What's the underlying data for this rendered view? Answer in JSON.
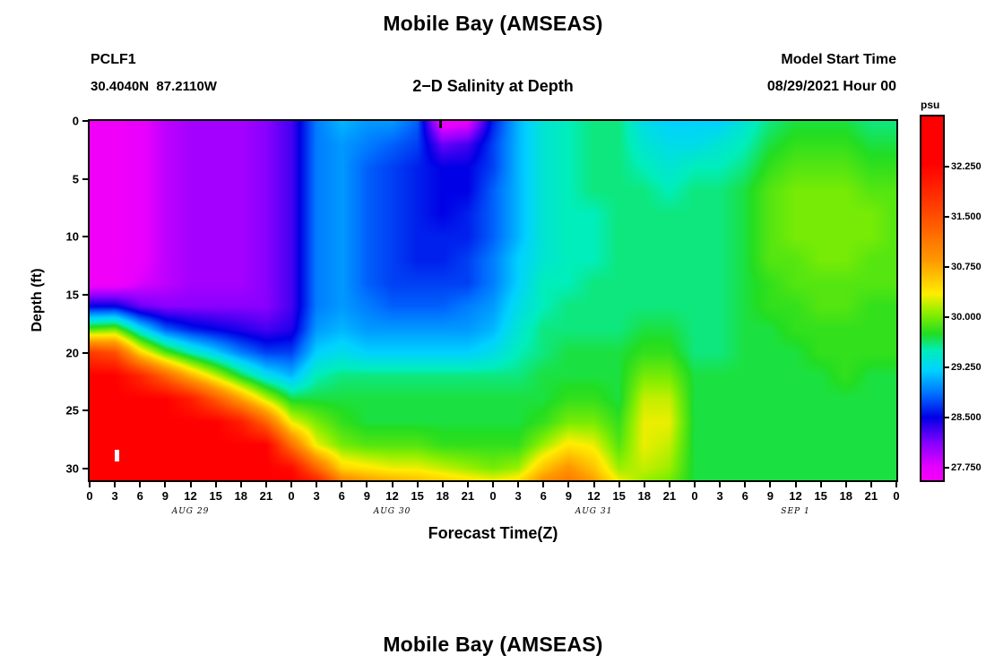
{
  "footer": {
    "next_title": "Mobile Bay (AMSEAS)"
  },
  "chart_data": {
    "type": "heatmap",
    "title": "Mobile Bay (AMSEAS)",
    "subtitle": "2−D Salinity at Depth",
    "station": "PCLF1",
    "location": "30.4040N  87.2110W",
    "model_start_label": "Model Start Time",
    "model_start_value": "08/29/2021 Hour 00",
    "xlabel": "Forecast Time(Z)",
    "ylabel": "Depth (ft)",
    "units": "psu",
    "hour_range": [
      0,
      96
    ],
    "depth_range": [
      0,
      31
    ],
    "x_hours": [
      0,
      3,
      6,
      9,
      12,
      15,
      18,
      21,
      24,
      27,
      30,
      33,
      36,
      39,
      42,
      45,
      48,
      51,
      54,
      57,
      60,
      63,
      66,
      69,
      72,
      75,
      78,
      81,
      84,
      87,
      90,
      93,
      96
    ],
    "x_tick_labels": [
      "0",
      "3",
      "6",
      "9",
      "12",
      "15",
      "18",
      "21",
      "0",
      "3",
      "6",
      "9",
      "12",
      "15",
      "18",
      "21",
      "0",
      "3",
      "6",
      "9",
      "12",
      "15",
      "18",
      "21",
      "0",
      "3",
      "6",
      "9",
      "12",
      "15",
      "18",
      "21",
      "0"
    ],
    "day_labels": [
      {
        "text": "AUG 29",
        "center_hour": 12
      },
      {
        "text": "AUG 30",
        "center_hour": 36
      },
      {
        "text": "AUG 31",
        "center_hour": 60
      },
      {
        "text": "SEP 1",
        "center_hour": 84
      }
    ],
    "y_ticks": [
      0,
      5,
      10,
      15,
      20,
      25,
      30
    ],
    "depths_ft": [
      0,
      2,
      4,
      6,
      8,
      10,
      12,
      14,
      16,
      18,
      20,
      22,
      24,
      26,
      28,
      30,
      31
    ],
    "salinity_psu": [
      [
        27.6,
        27.6,
        27.6,
        27.6,
        27.6,
        27.6,
        27.6,
        27.6,
        28.5,
        29.9,
        31.7,
        32.3,
        32.3,
        32.3,
        32.3,
        32.3,
        32.3
      ],
      [
        27.6,
        27.6,
        27.6,
        27.6,
        27.6,
        27.6,
        27.6,
        27.6,
        28.5,
        30.0,
        31.5,
        32.3,
        32.3,
        32.3,
        32.3,
        32.3,
        32.3
      ],
      [
        27.7,
        27.7,
        27.7,
        27.7,
        27.7,
        27.7,
        27.7,
        27.8,
        28.2,
        29.3,
        30.5,
        31.9,
        32.3,
        32.3,
        32.3,
        32.3,
        32.3
      ],
      [
        27.9,
        27.9,
        27.9,
        27.9,
        27.9,
        27.9,
        27.9,
        27.9,
        28.1,
        28.8,
        29.9,
        31.3,
        32.3,
        32.3,
        32.3,
        32.3,
        32.3
      ],
      [
        28.0,
        28.0,
        28.0,
        28.0,
        28.0,
        28.0,
        28.0,
        28.0,
        28.1,
        28.6,
        29.5,
        30.7,
        32.0,
        32.3,
        32.3,
        32.3,
        32.3
      ],
      [
        28.0,
        28.0,
        28.0,
        28.0,
        28.0,
        28.0,
        28.0,
        28.0,
        28.1,
        28.5,
        29.2,
        30.2,
        31.4,
        32.3,
        32.3,
        32.3,
        32.3
      ],
      [
        28.0,
        28.0,
        28.0,
        28.0,
        28.0,
        28.0,
        28.0,
        28.0,
        28.1,
        28.4,
        28.9,
        29.7,
        30.8,
        32.0,
        32.3,
        32.3,
        32.3
      ],
      [
        28.1,
        28.1,
        28.1,
        28.1,
        28.1,
        28.1,
        28.1,
        28.1,
        28.1,
        28.3,
        28.7,
        29.3,
        30.2,
        31.3,
        32.3,
        32.3,
        32.3
      ],
      [
        28.3,
        28.3,
        28.3,
        28.3,
        28.3,
        28.3,
        28.3,
        28.3,
        28.3,
        28.4,
        28.7,
        29.1,
        29.7,
        30.3,
        31.2,
        32.2,
        32.3
      ],
      [
        28.9,
        28.9,
        28.9,
        28.9,
        28.9,
        28.9,
        28.9,
        28.9,
        28.9,
        29.0,
        29.2,
        29.5,
        29.7,
        30.0,
        30.3,
        31.3,
        31.9
      ],
      [
        29.1,
        29.0,
        29.0,
        29.0,
        29.0,
        29.0,
        29.0,
        29.0,
        29.0,
        29.1,
        29.3,
        29.6,
        29.7,
        29.8,
        30.0,
        30.5,
        31.0
      ],
      [
        29.0,
        28.9,
        28.8,
        28.8,
        28.8,
        28.8,
        28.8,
        28.8,
        28.9,
        29.0,
        29.2,
        29.6,
        29.7,
        29.7,
        29.9,
        30.4,
        30.8
      ],
      [
        29.0,
        28.8,
        28.7,
        28.7,
        28.7,
        28.7,
        28.7,
        28.7,
        28.8,
        29.0,
        29.2,
        29.6,
        29.7,
        29.7,
        29.9,
        30.3,
        30.7
      ],
      [
        28.8,
        28.7,
        28.6,
        28.6,
        28.6,
        28.6,
        28.6,
        28.7,
        28.8,
        29.0,
        29.2,
        29.6,
        29.7,
        29.7,
        29.9,
        30.3,
        30.6
      ],
      [
        27.6,
        28.2,
        28.5,
        28.5,
        28.5,
        28.6,
        28.6,
        28.7,
        28.8,
        29.0,
        29.2,
        29.6,
        29.7,
        29.7,
        29.8,
        30.2,
        30.5
      ],
      [
        27.7,
        28.3,
        28.5,
        28.5,
        28.6,
        28.6,
        28.7,
        28.7,
        28.9,
        29.0,
        29.2,
        29.6,
        29.7,
        29.7,
        29.8,
        30.1,
        30.4
      ],
      [
        28.6,
        28.7,
        28.7,
        28.8,
        28.8,
        28.8,
        28.9,
        28.9,
        29.0,
        29.1,
        29.3,
        29.6,
        29.7,
        29.7,
        29.8,
        30.0,
        30.3
      ],
      [
        29.1,
        29.1,
        29.1,
        29.1,
        29.1,
        29.1,
        29.2,
        29.2,
        29.3,
        29.4,
        29.5,
        29.6,
        29.7,
        29.7,
        29.8,
        30.1,
        30.4
      ],
      [
        29.4,
        29.4,
        29.4,
        29.4,
        29.4,
        29.4,
        29.4,
        29.5,
        29.5,
        29.6,
        29.6,
        29.7,
        29.7,
        29.8,
        30.1,
        30.6,
        30.9
      ],
      [
        29.5,
        29.5,
        29.5,
        29.5,
        29.5,
        29.5,
        29.5,
        29.5,
        29.6,
        29.6,
        29.7,
        29.7,
        29.8,
        30.0,
        30.4,
        30.9,
        31.1
      ],
      [
        29.6,
        29.6,
        29.6,
        29.6,
        29.5,
        29.5,
        29.5,
        29.6,
        29.6,
        29.6,
        29.7,
        29.7,
        29.8,
        30.0,
        30.3,
        30.6,
        30.8
      ],
      [
        29.6,
        29.6,
        29.6,
        29.6,
        29.6,
        29.6,
        29.6,
        29.6,
        29.6,
        29.6,
        29.7,
        29.7,
        29.7,
        29.8,
        29.9,
        30.1,
        30.3
      ],
      [
        29.3,
        29.4,
        29.5,
        29.6,
        29.6,
        29.6,
        29.6,
        29.6,
        29.6,
        29.7,
        29.8,
        30.0,
        30.2,
        30.3,
        30.3,
        30.2,
        30.1
      ],
      [
        29.2,
        29.3,
        29.4,
        29.5,
        29.6,
        29.6,
        29.6,
        29.6,
        29.6,
        29.7,
        29.8,
        30.0,
        30.2,
        30.3,
        30.2,
        30.1,
        30.0
      ],
      [
        29.2,
        29.3,
        29.5,
        29.6,
        29.6,
        29.6,
        29.6,
        29.6,
        29.6,
        29.6,
        29.6,
        29.7,
        29.7,
        29.7,
        29.7,
        29.7,
        29.7
      ],
      [
        29.2,
        29.4,
        29.5,
        29.6,
        29.6,
        29.6,
        29.6,
        29.6,
        29.6,
        29.6,
        29.6,
        29.7,
        29.7,
        29.7,
        29.7,
        29.7,
        29.7
      ],
      [
        29.4,
        29.5,
        29.6,
        29.7,
        29.7,
        29.7,
        29.7,
        29.7,
        29.7,
        29.7,
        29.7,
        29.7,
        29.7,
        29.7,
        29.7,
        29.7,
        29.7
      ],
      [
        29.6,
        29.7,
        29.8,
        29.9,
        29.9,
        29.9,
        29.9,
        29.8,
        29.8,
        29.7,
        29.7,
        29.7,
        29.7,
        29.7,
        29.7,
        29.7,
        29.7
      ],
      [
        29.7,
        29.8,
        29.9,
        30.0,
        30.0,
        30.0,
        29.9,
        29.9,
        29.8,
        29.8,
        29.7,
        29.7,
        29.7,
        29.7,
        29.7,
        29.7,
        29.7
      ],
      [
        29.7,
        29.8,
        29.9,
        30.0,
        30.0,
        30.0,
        30.0,
        29.9,
        29.9,
        29.8,
        29.8,
        29.7,
        29.7,
        29.7,
        29.7,
        29.7,
        29.7
      ],
      [
        29.7,
        29.8,
        29.9,
        30.0,
        30.0,
        30.0,
        30.0,
        29.9,
        29.9,
        29.8,
        29.8,
        29.8,
        29.7,
        29.7,
        29.7,
        29.7,
        29.7
      ],
      [
        29.6,
        29.7,
        29.8,
        29.9,
        30.0,
        30.0,
        29.9,
        29.9,
        29.8,
        29.8,
        29.8,
        29.7,
        29.7,
        29.7,
        29.7,
        29.7,
        29.7
      ],
      [
        29.6,
        29.7,
        29.8,
        29.9,
        29.9,
        29.9,
        29.9,
        29.9,
        29.8,
        29.8,
        29.8,
        29.7,
        29.7,
        29.7,
        29.7,
        29.7,
        29.7
      ]
    ],
    "colorbar": {
      "units": "psu",
      "tick_labels": [
        "32.250",
        "31.500",
        "30.750",
        "30.000",
        "29.250",
        "28.500",
        "27.750"
      ],
      "min": 27.5625,
      "max": 33.0
    },
    "colormap": [
      {
        "v": 27.4,
        "c": "#ff00f0"
      },
      {
        "v": 27.75,
        "c": "#e600ff"
      },
      {
        "v": 28.1,
        "c": "#8a00ff"
      },
      {
        "v": 28.5,
        "c": "#0000e6"
      },
      {
        "v": 28.85,
        "c": "#0070ff"
      },
      {
        "v": 29.2,
        "c": "#00d2ff"
      },
      {
        "v": 29.5,
        "c": "#00eebb"
      },
      {
        "v": 29.75,
        "c": "#22dd22"
      },
      {
        "v": 30.05,
        "c": "#88ee00"
      },
      {
        "v": 30.35,
        "c": "#ffee00"
      },
      {
        "v": 30.85,
        "c": "#ff9900"
      },
      {
        "v": 31.6,
        "c": "#ff4400"
      },
      {
        "v": 32.3,
        "c": "#ff0000"
      }
    ],
    "markers": [
      {
        "name": "obs-marker",
        "color": "#ffffff",
        "hour": 3.2,
        "depth": 28.9
      },
      {
        "name": "surface-tick-marker",
        "color": "#000000",
        "hour": 41.8,
        "depth": 0.0
      }
    ]
  }
}
